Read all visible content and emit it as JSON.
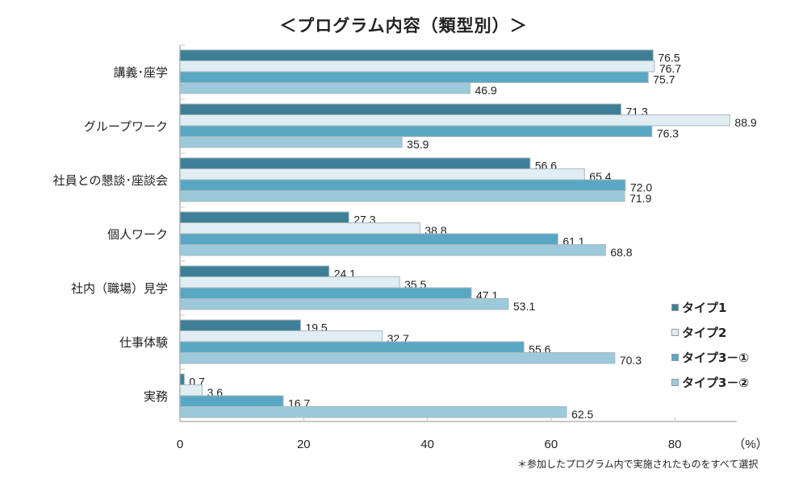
{
  "chart_data": {
    "type": "bar",
    "orientation": "horizontal",
    "title": "＜プログラム内容（類型別）＞",
    "categories": [
      "講義･座学",
      "グループワーク",
      "社員との懇談･座談会",
      "個人ワーク",
      "社内（職場）見学",
      "仕事体験",
      "実務"
    ],
    "series": [
      {
        "name": "タイプ1",
        "color": "#3e7f97",
        "values": [
          76.5,
          71.3,
          56.6,
          27.3,
          24.1,
          19.5,
          0.7
        ]
      },
      {
        "name": "タイプ2",
        "color": "#e0edf2",
        "values": [
          76.7,
          88.9,
          65.4,
          38.8,
          35.5,
          32.7,
          3.6
        ]
      },
      {
        "name": "タイプ3－①",
        "color": "#5aa7c3",
        "values": [
          75.7,
          76.3,
          72.0,
          61.1,
          47.1,
          55.6,
          16.7
        ]
      },
      {
        "name": "タイプ3－②",
        "color": "#9ccadb",
        "values": [
          46.9,
          35.9,
          71.9,
          68.8,
          53.1,
          70.3,
          62.5
        ]
      }
    ],
    "xlim": [
      0,
      90
    ],
    "xticks": [
      0,
      20,
      40,
      60,
      80
    ],
    "xunit": "（%）",
    "xlabel": "",
    "ylabel": "",
    "legend_position": "right",
    "grid": false,
    "footnote": "＊参加したプログラム内で実施されたものをすべて選択"
  }
}
